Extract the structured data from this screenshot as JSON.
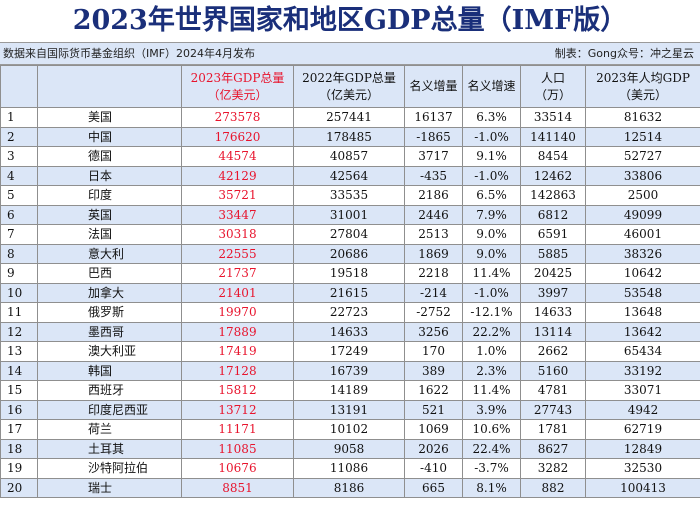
{
  "title": "2023年世界国家和地区GDP总量（IMF版）",
  "source_note": "数据来自国际货币基金组织（IMF）2024年4月发布",
  "credit": "制表：Gong众号：冲之星云",
  "headers": {
    "gdp2023": [
      "2023年GDP总量",
      "（亿美元）"
    ],
    "gdp2022": [
      "2022年GDP总量",
      "（亿美元）"
    ],
    "nominal_increase": [
      "名义增量"
    ],
    "nominal_growth": [
      "名义增速"
    ],
    "population": [
      "人口",
      "（万）"
    ],
    "per_capita": [
      "2023年人均GDP",
      "（美元）"
    ]
  },
  "colors": {
    "accent_red": "#e8142d",
    "header_blue": "#dbe6f7",
    "title_navy": "#1a2f7a"
  },
  "rows": [
    {
      "rank": "1",
      "country": "美国",
      "gdp2023": "273578",
      "gdp2022": "257441",
      "increase": "16137",
      "growth": "6.3%",
      "population": "33514",
      "per_capita": "81632"
    },
    {
      "rank": "2",
      "country": "中国",
      "gdp2023": "176620",
      "gdp2022": "178485",
      "increase": "-1865",
      "growth": "-1.0%",
      "population": "141140",
      "per_capita": "12514"
    },
    {
      "rank": "3",
      "country": "德国",
      "gdp2023": "44574",
      "gdp2022": "40857",
      "increase": "3717",
      "growth": "9.1%",
      "population": "8454",
      "per_capita": "52727"
    },
    {
      "rank": "4",
      "country": "日本",
      "gdp2023": "42129",
      "gdp2022": "42564",
      "increase": "-435",
      "growth": "-1.0%",
      "population": "12462",
      "per_capita": "33806"
    },
    {
      "rank": "5",
      "country": "印度",
      "gdp2023": "35721",
      "gdp2022": "33535",
      "increase": "2186",
      "growth": "6.5%",
      "population": "142863",
      "per_capita": "2500"
    },
    {
      "rank": "6",
      "country": "英国",
      "gdp2023": "33447",
      "gdp2022": "31001",
      "increase": "2446",
      "growth": "7.9%",
      "population": "6812",
      "per_capita": "49099"
    },
    {
      "rank": "7",
      "country": "法国",
      "gdp2023": "30318",
      "gdp2022": "27804",
      "increase": "2513",
      "growth": "9.0%",
      "population": "6591",
      "per_capita": "46001"
    },
    {
      "rank": "8",
      "country": "意大利",
      "gdp2023": "22555",
      "gdp2022": "20686",
      "increase": "1869",
      "growth": "9.0%",
      "population": "5885",
      "per_capita": "38326"
    },
    {
      "rank": "9",
      "country": "巴西",
      "gdp2023": "21737",
      "gdp2022": "19518",
      "increase": "2218",
      "growth": "11.4%",
      "population": "20425",
      "per_capita": "10642"
    },
    {
      "rank": "10",
      "country": "加拿大",
      "gdp2023": "21401",
      "gdp2022": "21615",
      "increase": "-214",
      "growth": "-1.0%",
      "population": "3997",
      "per_capita": "53548"
    },
    {
      "rank": "11",
      "country": "俄罗斯",
      "gdp2023": "19970",
      "gdp2022": "22723",
      "increase": "-2752",
      "growth": "-12.1%",
      "population": "14633",
      "per_capita": "13648"
    },
    {
      "rank": "12",
      "country": "墨西哥",
      "gdp2023": "17889",
      "gdp2022": "14633",
      "increase": "3256",
      "growth": "22.2%",
      "population": "13114",
      "per_capita": "13642"
    },
    {
      "rank": "13",
      "country": "澳大利亚",
      "gdp2023": "17419",
      "gdp2022": "17249",
      "increase": "170",
      "growth": "1.0%",
      "population": "2662",
      "per_capita": "65434"
    },
    {
      "rank": "14",
      "country": "韩国",
      "gdp2023": "17128",
      "gdp2022": "16739",
      "increase": "389",
      "growth": "2.3%",
      "population": "5160",
      "per_capita": "33192"
    },
    {
      "rank": "15",
      "country": "西班牙",
      "gdp2023": "15812",
      "gdp2022": "14189",
      "increase": "1622",
      "growth": "11.4%",
      "population": "4781",
      "per_capita": "33071"
    },
    {
      "rank": "16",
      "country": "印度尼西亚",
      "gdp2023": "13712",
      "gdp2022": "13191",
      "increase": "521",
      "growth": "3.9%",
      "population": "27743",
      "per_capita": "4942"
    },
    {
      "rank": "17",
      "country": "荷兰",
      "gdp2023": "11171",
      "gdp2022": "10102",
      "increase": "1069",
      "growth": "10.6%",
      "population": "1781",
      "per_capita": "62719"
    },
    {
      "rank": "18",
      "country": "土耳其",
      "gdp2023": "11085",
      "gdp2022": "9058",
      "increase": "2026",
      "growth": "22.4%",
      "population": "8627",
      "per_capita": "12849"
    },
    {
      "rank": "19",
      "country": "沙特阿拉伯",
      "gdp2023": "10676",
      "gdp2022": "11086",
      "increase": "-410",
      "growth": "-3.7%",
      "population": "3282",
      "per_capita": "32530"
    },
    {
      "rank": "20",
      "country": "瑞士",
      "gdp2023": "8851",
      "gdp2022": "8186",
      "increase": "665",
      "growth": "8.1%",
      "population": "882",
      "per_capita": "100413"
    }
  ]
}
